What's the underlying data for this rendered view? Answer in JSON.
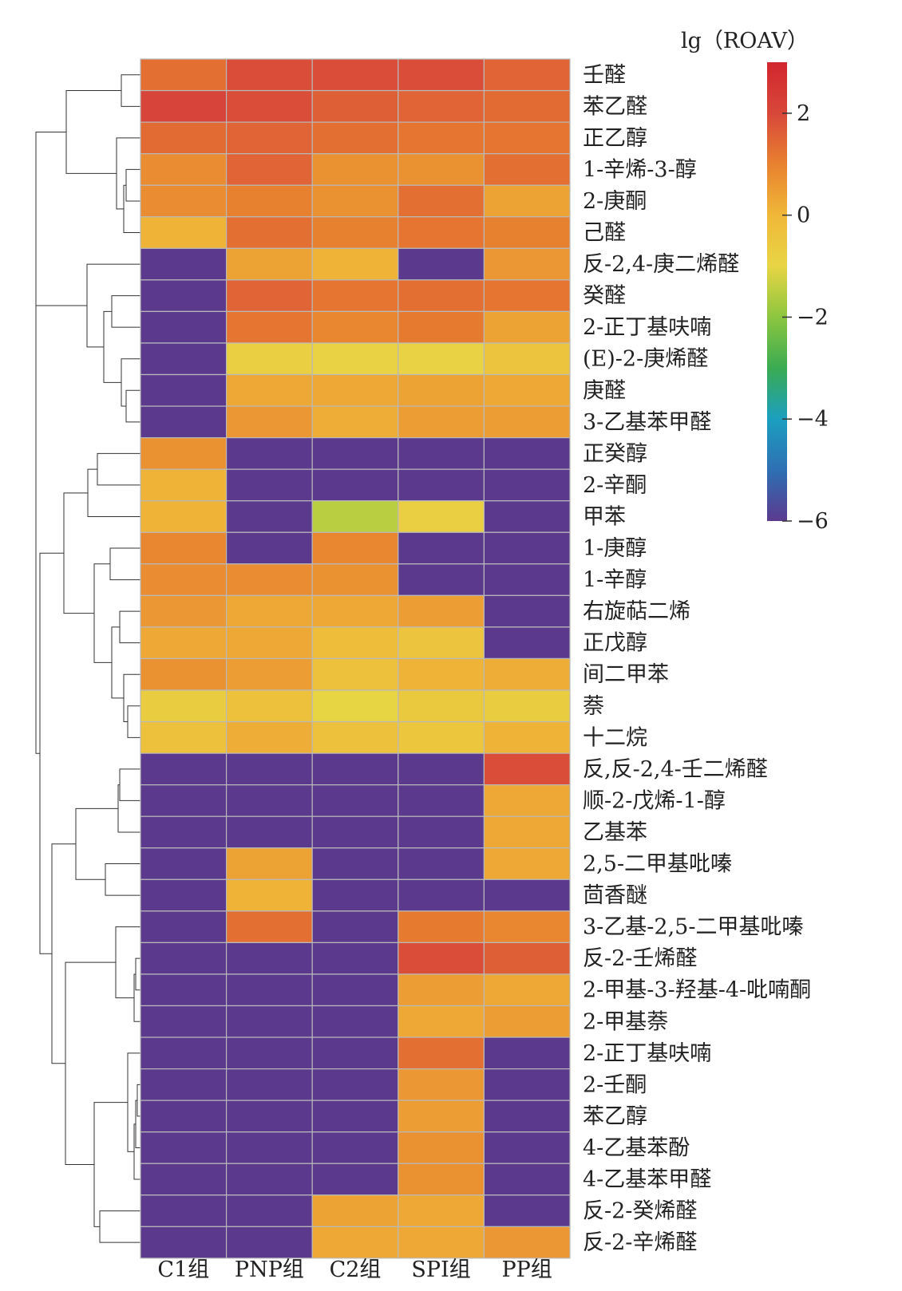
{
  "chart_data": {
    "type": "heatmap",
    "colorbar": {
      "title": "lg（ROAV）",
      "min": -6,
      "max": 3,
      "ticks": [
        2,
        0,
        -2,
        -4,
        -6
      ],
      "tick_labels": [
        "2",
        "0",
        "−2",
        "−4",
        "−6"
      ],
      "colormap": [
        "#5b3a8e",
        "#2e6fb3",
        "#1b9fc0",
        "#3aab52",
        "#8cc63f",
        "#e8d544",
        "#f0b838",
        "#e8812f",
        "#d8473a",
        "#d2262e"
      ]
    },
    "columns": [
      "C1组",
      "PNP组",
      "C2组",
      "SPI组",
      "PP组"
    ],
    "rows": [
      "壬醛",
      "苯乙醛",
      "正乙醇",
      "1-辛烯-3-醇",
      "2-庚酮",
      "己醛",
      "反-2,4-庚二烯醛",
      "癸醛",
      "2-正丁基呋喃",
      "(E)-2-庚烯醛",
      "庚醛",
      "3-乙基苯甲醛",
      "正癸醇",
      "2-辛酮",
      "甲苯",
      "1-庚醇",
      "1-辛醇",
      "右旋萜二烯",
      "正戊醇",
      "间二甲苯",
      "萘",
      "十二烷",
      "反,反-2,4-壬二烯醛",
      "顺-2-戊烯-1-醇",
      "乙基苯",
      "2,5-二甲基吡嗪",
      "茴香醚",
      "3-乙基-2,5-二甲基吡嗪",
      "反-2-壬烯醛",
      "2-甲基-3-羟基-4-吡喃酮",
      "2-甲基萘",
      "2-正丁基呋喃",
      "2-壬酮",
      "苯乙醇",
      "4-乙基苯酚",
      "4-乙基苯甲醛",
      "反-2-癸烯醛",
      "反-2-辛烯醛"
    ],
    "values": [
      [
        1.3,
        1.9,
        1.9,
        1.9,
        1.5
      ],
      [
        2.1,
        1.9,
        1.6,
        1.5,
        1.4
      ],
      [
        1.4,
        1.5,
        1.3,
        1.2,
        1.2
      ],
      [
        0.8,
        1.5,
        0.7,
        0.7,
        1.3
      ],
      [
        0.8,
        1.0,
        0.7,
        1.3,
        0.4
      ],
      [
        0.1,
        1.3,
        1.0,
        1.2,
        1.0
      ],
      [
        -6,
        0.4,
        0.1,
        -6,
        0.6
      ],
      [
        -6,
        1.5,
        1.2,
        1.3,
        1.2
      ],
      [
        -6,
        1.2,
        0.9,
        1.1,
        0.4
      ],
      [
        -6,
        -0.8,
        -0.9,
        -0.9,
        -0.4
      ],
      [
        -6,
        0.3,
        0.3,
        0.4,
        0.3
      ],
      [
        -6,
        0.6,
        0.2,
        0.5,
        0.5
      ],
      [
        0.7,
        -6,
        -6,
        -6,
        -6
      ],
      [
        0.1,
        -6,
        -6,
        -6,
        -6
      ],
      [
        0.1,
        -6,
        -1.5,
        -0.8,
        -6
      ],
      [
        0.9,
        -6,
        0.9,
        -6,
        -6
      ],
      [
        0.8,
        0.8,
        0.7,
        -6,
        -6
      ],
      [
        0.6,
        0.3,
        0.3,
        0.5,
        -6
      ],
      [
        0.3,
        0.3,
        -0.2,
        -0.4,
        -6
      ],
      [
        0.7,
        0.5,
        -0.3,
        0.1,
        0.2
      ],
      [
        -0.7,
        -0.3,
        -1.0,
        -0.6,
        -0.7
      ],
      [
        -0.3,
        0.2,
        -0.3,
        -0.5,
        0.1
      ],
      [
        -6,
        -6,
        -6,
        -6,
        1.9
      ],
      [
        -6,
        -6,
        -6,
        -6,
        0.3
      ],
      [
        -6,
        -6,
        -6,
        -6,
        0.3
      ],
      [
        -6,
        0.4,
        -6,
        -6,
        0.3
      ],
      [
        -6,
        0.1,
        -6,
        -6,
        -6
      ],
      [
        -6,
        1.3,
        -6,
        1.1,
        0.9
      ],
      [
        -6,
        -6,
        -6,
        1.9,
        1.6
      ],
      [
        -6,
        -6,
        -6,
        0.5,
        0.3
      ],
      [
        -6,
        -6,
        -6,
        0.3,
        0.5
      ],
      [
        -6,
        -6,
        -6,
        1.3,
        -6
      ],
      [
        -6,
        -6,
        -6,
        0.6,
        -6
      ],
      [
        -6,
        -6,
        -6,
        0.5,
        -6
      ],
      [
        -6,
        -6,
        -6,
        0.7,
        -6
      ],
      [
        -6,
        -6,
        -6,
        0.7,
        -6
      ],
      [
        -6,
        -6,
        0.4,
        0.3,
        -6
      ],
      [
        -6,
        -6,
        0.3,
        0.3,
        0.6
      ]
    ]
  }
}
